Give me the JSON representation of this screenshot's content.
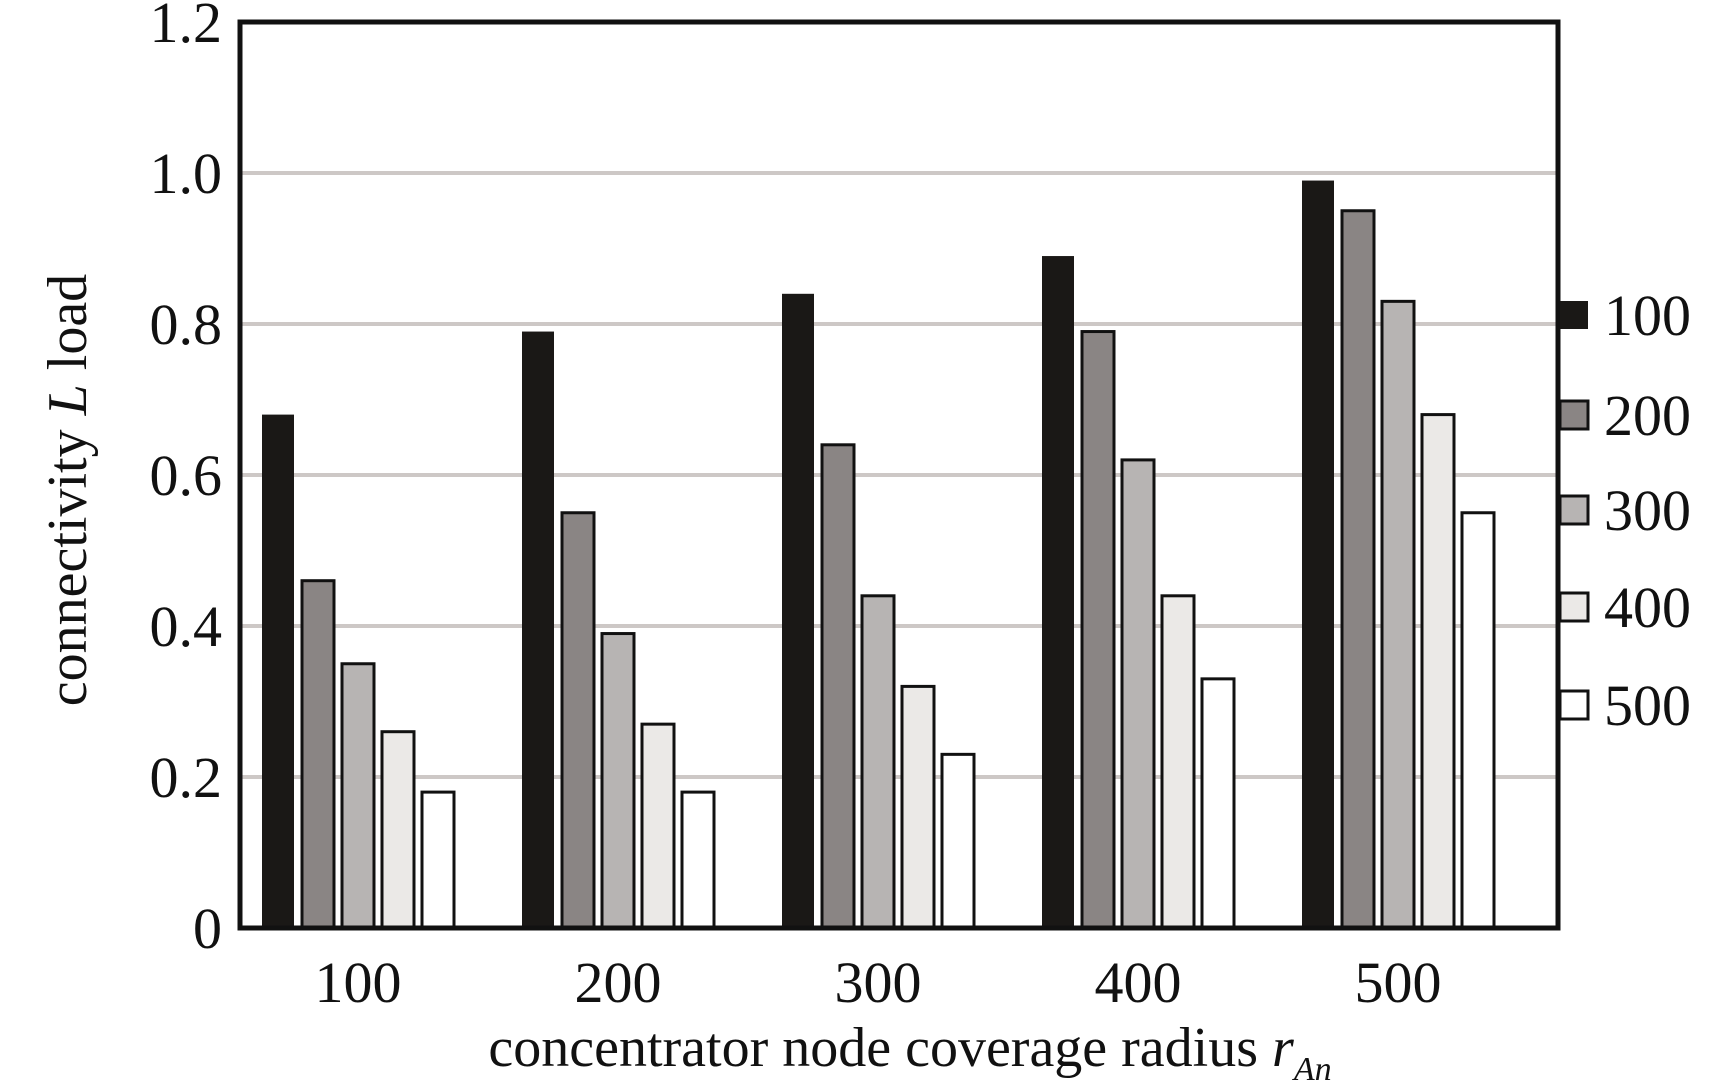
{
  "chart_data": {
    "type": "bar",
    "categories": [
      "100",
      "200",
      "300",
      "400",
      "500"
    ],
    "series": [
      {
        "name": "100",
        "values": [
          0.68,
          0.79,
          0.84,
          0.89,
          0.99
        ],
        "color": "#1a1816"
      },
      {
        "name": "200",
        "values": [
          0.46,
          0.55,
          0.64,
          0.79,
          0.95
        ],
        "color": "#8a8584"
      },
      {
        "name": "300",
        "values": [
          0.35,
          0.39,
          0.44,
          0.62,
          0.83
        ],
        "color": "#b7b4b3"
      },
      {
        "name": "400",
        "values": [
          0.26,
          0.27,
          0.32,
          0.44,
          0.68
        ],
        "color": "#ebe9e7"
      },
      {
        "name": "500",
        "values": [
          0.18,
          0.18,
          0.23,
          0.33,
          0.55
        ],
        "color": "#ffffff"
      }
    ],
    "yticks": [
      "0",
      "0.2",
      "0.4",
      "0.6",
      "0.8",
      "1.0",
      "1.2"
    ],
    "ylim": [
      0,
      1.2
    ],
    "xlabel": "concentrator node coverage radius ",
    "xlabel_var": "r",
    "xlabel_sub": "An",
    "ylabel_pre": "connectivity ",
    "ylabel_var": "L",
    "ylabel_post": " load",
    "grid": true,
    "legend_position": "right"
  }
}
